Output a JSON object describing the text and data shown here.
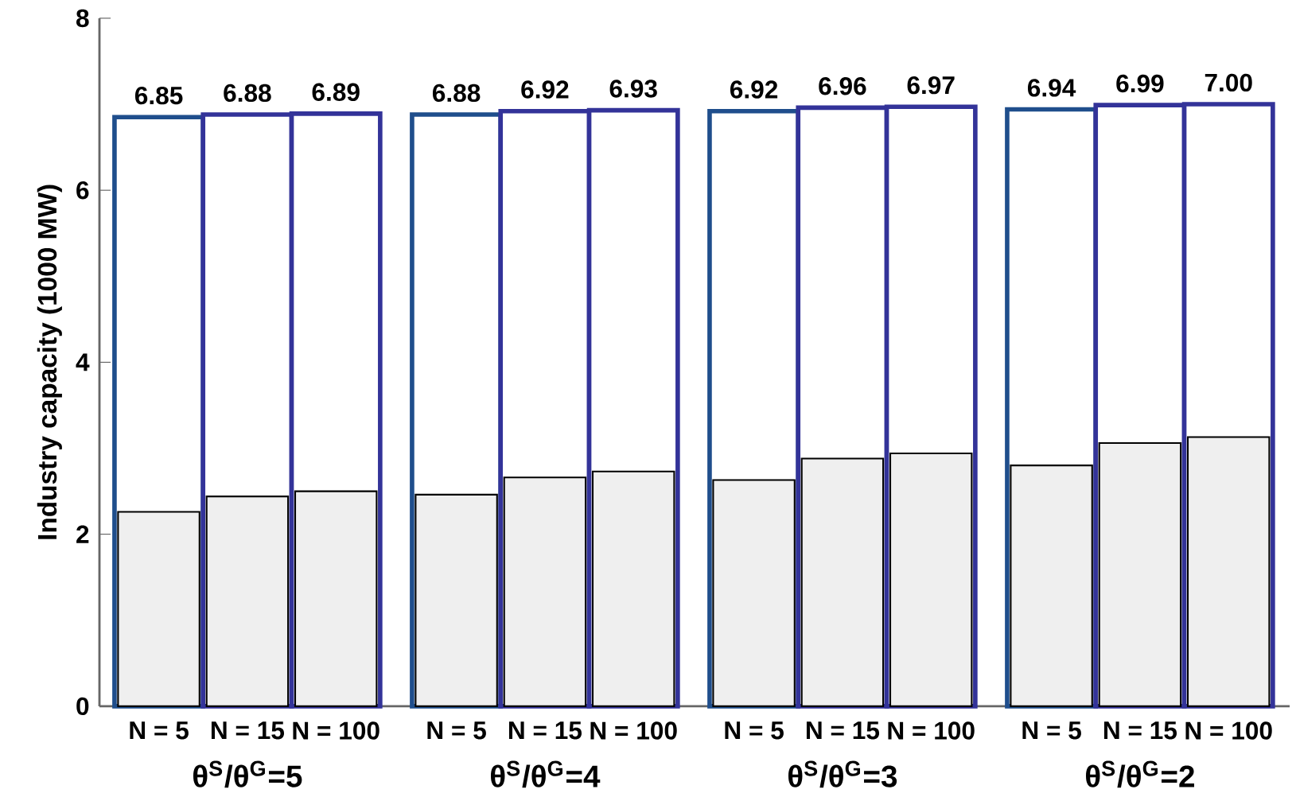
{
  "chart_data": {
    "type": "bar",
    "ylabel": "Industry capacity  (1000 MW)",
    "categories": [
      "N = 5",
      "N = 15",
      "N = 100",
      "N = 5",
      "N = 15",
      "N = 100",
      "N = 5",
      "N = 15",
      "N = 100",
      "N = 5",
      "N = 15",
      "N = 100"
    ],
    "series": [
      {
        "colors": [
          "#1f4e8c",
          "#333399",
          "#333399",
          "#1f4e8c",
          "#333399",
          "#333399",
          "#1f4e8c",
          "#333399",
          "#333399",
          "#1f4e8c",
          "#333399",
          "#333399"
        ],
        "values": [
          6.85,
          6.88,
          6.89,
          6.88,
          6.92,
          6.93,
          6.92,
          6.96,
          6.97,
          6.94,
          6.99,
          7.0
        ],
        "value_labels": [
          "6.85",
          "6.88",
          "6.89",
          "6.88",
          "6.92",
          "6.93",
          "6.92",
          "6.96",
          "6.97",
          "6.94",
          "6.99",
          "7.00"
        ]
      },
      {
        "color": "#efefef",
        "values": [
          2.26,
          2.44,
          2.5,
          2.46,
          2.66,
          2.73,
          2.63,
          2.88,
          2.94,
          2.8,
          3.06,
          3.13
        ]
      }
    ],
    "ylim": [
      0,
      8
    ],
    "yticks": [
      0,
      2,
      4,
      6,
      8
    ],
    "annotations": [
      "θ$^{S}$/θ$^{G}$=5",
      "θ$^{S}$/θ$^{G}$=4",
      "θ$^{S}$/θ$^{G}$=3",
      "θ$^{S}$/θ$^{G}$=2"
    ]
  }
}
